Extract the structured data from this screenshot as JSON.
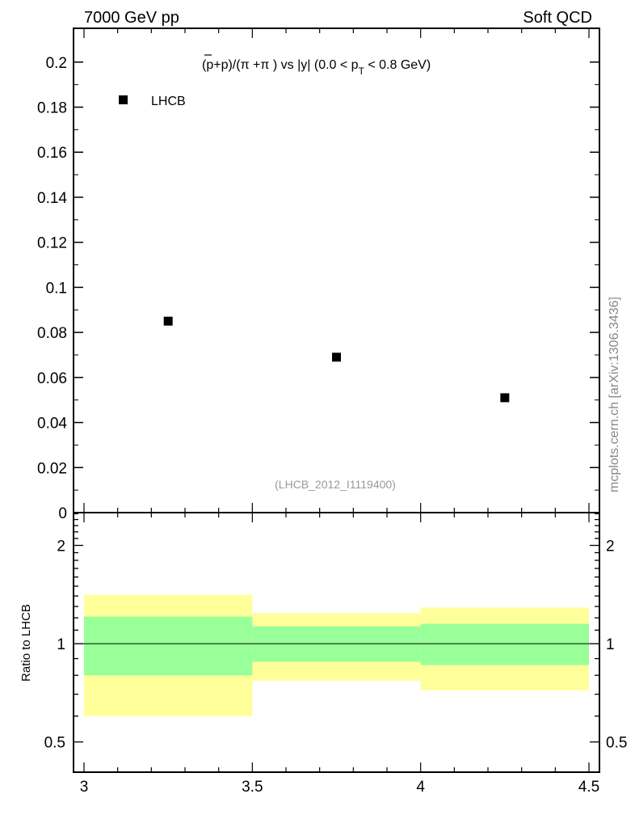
{
  "header": {
    "left": "7000 GeV pp",
    "right": "Soft QCD"
  },
  "side_label": "mcplots.cern.ch [arXiv:1306.3436]",
  "chart_data": [
    {
      "type": "scatter",
      "title": "(p̄+p)/(π⁻+π⁻) vs |y| (0.0 < pT < 0.8 GeV)",
      "title_parts": {
        "main": "(p+p)/(π +π ) vs |y| (0.0 < p",
        "sub": "T",
        "tail": " < 0.8 GeV)"
      },
      "watermark": "(LHCB_2012_I1119400)",
      "xlim": [
        3,
        4.5
      ],
      "ylim": [
        0,
        0.215
      ],
      "yticks": [
        0,
        0.02,
        0.04,
        0.06,
        0.08,
        0.1,
        0.12,
        0.14,
        0.16,
        0.18,
        0.2
      ],
      "ytick_labels": [
        "0",
        "0.02",
        "0.04",
        "0.06",
        "0.08",
        "0.1",
        "0.12",
        "0.14",
        "0.16",
        "0.18",
        "0.2"
      ],
      "legend": {
        "position": "top-left",
        "entries": [
          "LHCB"
        ]
      },
      "series": [
        {
          "name": "LHCB",
          "x": [
            3.25,
            3.75,
            4.25
          ],
          "y": [
            0.085,
            0.069,
            0.051
          ]
        }
      ]
    },
    {
      "type": "area",
      "ylabel": "Ratio to LHCB",
      "yscale": "log",
      "ylim": [
        0.404,
        2.52
      ],
      "xlim": [
        3,
        4.5
      ],
      "xticks": [
        3,
        3.5,
        4,
        4.5
      ],
      "xtick_labels": [
        "3",
        "3.5",
        "4",
        "4.5"
      ],
      "yticks": [
        0.5,
        1,
        2
      ],
      "ytick_labels": [
        "0.5",
        "1",
        "2"
      ],
      "bins": [
        [
          3,
          3.5
        ],
        [
          3.5,
          4
        ],
        [
          4,
          4.5
        ]
      ],
      "bands": [
        {
          "name": "yellow",
          "color": "#ffff99",
          "low": [
            0.6,
            0.77,
            0.72
          ],
          "high": [
            1.41,
            1.24,
            1.29
          ]
        },
        {
          "name": "green",
          "color": "#99ff99",
          "low": [
            0.8,
            0.88,
            0.86
          ],
          "high": [
            1.21,
            1.13,
            1.15
          ]
        }
      ],
      "reference": 1
    }
  ]
}
